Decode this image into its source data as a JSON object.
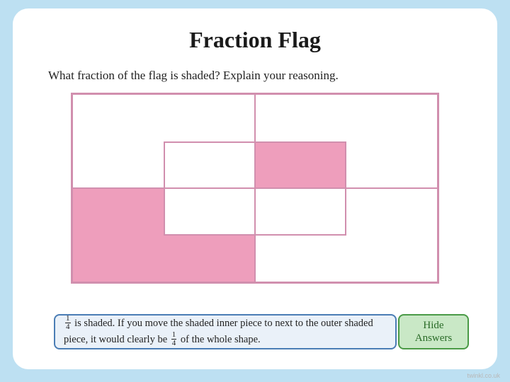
{
  "title": "Fraction Flag",
  "question": "What fraction of the flag is shaded? Explain your reasoning.",
  "flag": {
    "border_color": "#d18fae",
    "shaded_color": "#ee9ebc",
    "unshaded_color": "#ffffff",
    "outer_quadrants": {
      "top_left": false,
      "top_right": false,
      "bottom_left": true,
      "bottom_right": false
    },
    "inner_quadrants": {
      "top_left": false,
      "top_right": true,
      "bottom_left": false,
      "bottom_right": false
    }
  },
  "answer": {
    "frac1": {
      "n": "1",
      "d": "4"
    },
    "text1": " is shaded. If you move the shaded inner piece to next to the outer shaded piece, it would clearly be ",
    "frac2": {
      "n": "1",
      "d": "4"
    },
    "text2": " of the whole shape.",
    "bg": "#eaf1f9",
    "border": "#4a7db5"
  },
  "button": {
    "line1": "Hide",
    "line2": "Answers",
    "bg": "#c9e8c6",
    "border": "#4a9a46",
    "text_color": "#2a6b28"
  },
  "watermark": "twinkl.co.uk",
  "page_bg": "#bde0f2",
  "card_bg": "#ffffff"
}
